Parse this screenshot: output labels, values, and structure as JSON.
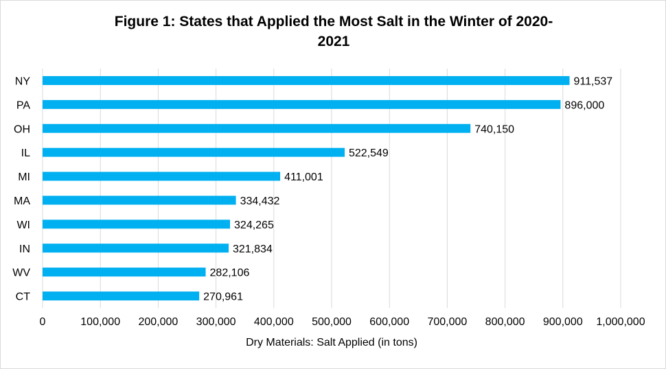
{
  "chart_data": {
    "type": "bar",
    "orientation": "horizontal",
    "title_line1": "Figure 1: States that Applied the Most Salt in the Winter of 2020-",
    "title_line2": "2021",
    "xlabel": "Dry Materials: Salt Applied  (in tons)",
    "ylabel": "",
    "categories": [
      "NY",
      "PA",
      "OH",
      "IL",
      "MI",
      "MA",
      "WI",
      "IN",
      "WV",
      "CT"
    ],
    "values": [
      911537,
      896000,
      740150,
      522549,
      411001,
      334432,
      324265,
      321834,
      282106,
      270961
    ],
    "value_labels": [
      "911,537",
      "896,000",
      "740,150",
      "522,549",
      "411,001",
      "334,432",
      "324,265",
      "321,834",
      "282,106",
      "270,961"
    ],
    "xlim": [
      0,
      1000000
    ],
    "x_ticks": [
      0,
      100000,
      200000,
      300000,
      400000,
      500000,
      600000,
      700000,
      800000,
      900000,
      1000000
    ],
    "x_tick_labels": [
      "0",
      "100,000",
      "200,000",
      "300,000",
      "400,000",
      "500,000",
      "600,000",
      "700,000",
      "800,000",
      "900,000",
      "1,000,000"
    ],
    "grid": "vertical",
    "legend": "none",
    "bar_color": "#00b0f0",
    "grid_color": "#d9d9d9"
  }
}
